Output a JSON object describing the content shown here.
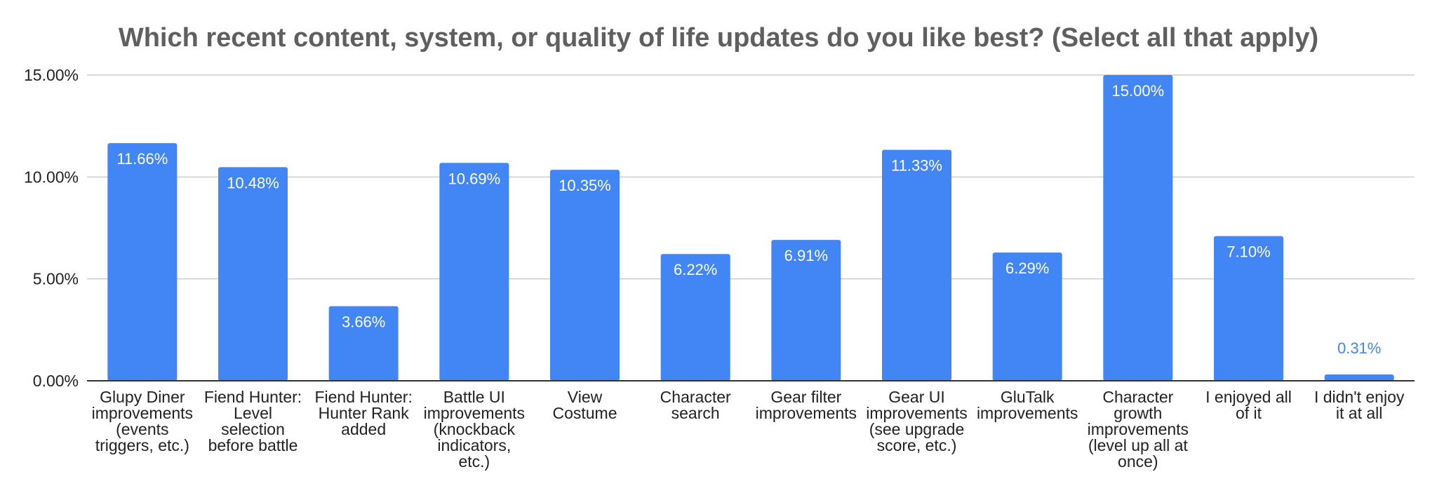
{
  "chart_data": {
    "type": "bar",
    "title": "Which recent content, system, or quality of life updates do you like best? (Select all that apply)",
    "xlabel": "",
    "ylabel": "",
    "ylim": [
      0,
      15
    ],
    "yticks": [
      "0.00%",
      "5.00%",
      "10.00%",
      "15.00%"
    ],
    "ytick_values": [
      0,
      5,
      10,
      15
    ],
    "grid": true,
    "legend": "none",
    "bar_color": "#4285f4",
    "categories": [
      [
        "Glupy Diner",
        "improvements",
        "(events",
        "triggers, etc.)"
      ],
      [
        "Fiend Hunter:",
        "Level",
        "selection",
        "before battle"
      ],
      [
        "Fiend Hunter:",
        "Hunter Rank",
        "added"
      ],
      [
        "Battle UI",
        "improvements",
        "(knockback",
        "indicators,",
        "etc.)"
      ],
      [
        "View",
        "Costume"
      ],
      [
        "Character",
        "search"
      ],
      [
        "Gear filter",
        "improvements"
      ],
      [
        "Gear UI",
        "improvements",
        "(see upgrade",
        "score, etc.)"
      ],
      [
        "GluTalk",
        "improvements"
      ],
      [
        "Character",
        "growth",
        "improvements",
        "(level up all at",
        "once)"
      ],
      [
        "I enjoyed all",
        "of it"
      ],
      [
        "I didn't enjoy",
        "it at all"
      ]
    ],
    "values": [
      11.66,
      10.48,
      3.66,
      10.69,
      10.35,
      6.22,
      6.91,
      11.33,
      6.29,
      15.0,
      7.1,
      0.31
    ],
    "data_labels": [
      "11.66%",
      "10.48%",
      "3.66%",
      "10.69%",
      "10.35%",
      "6.22%",
      "6.91%",
      "11.33%",
      "6.29%",
      "15.00%",
      "7.10%",
      "0.31%"
    ]
  }
}
